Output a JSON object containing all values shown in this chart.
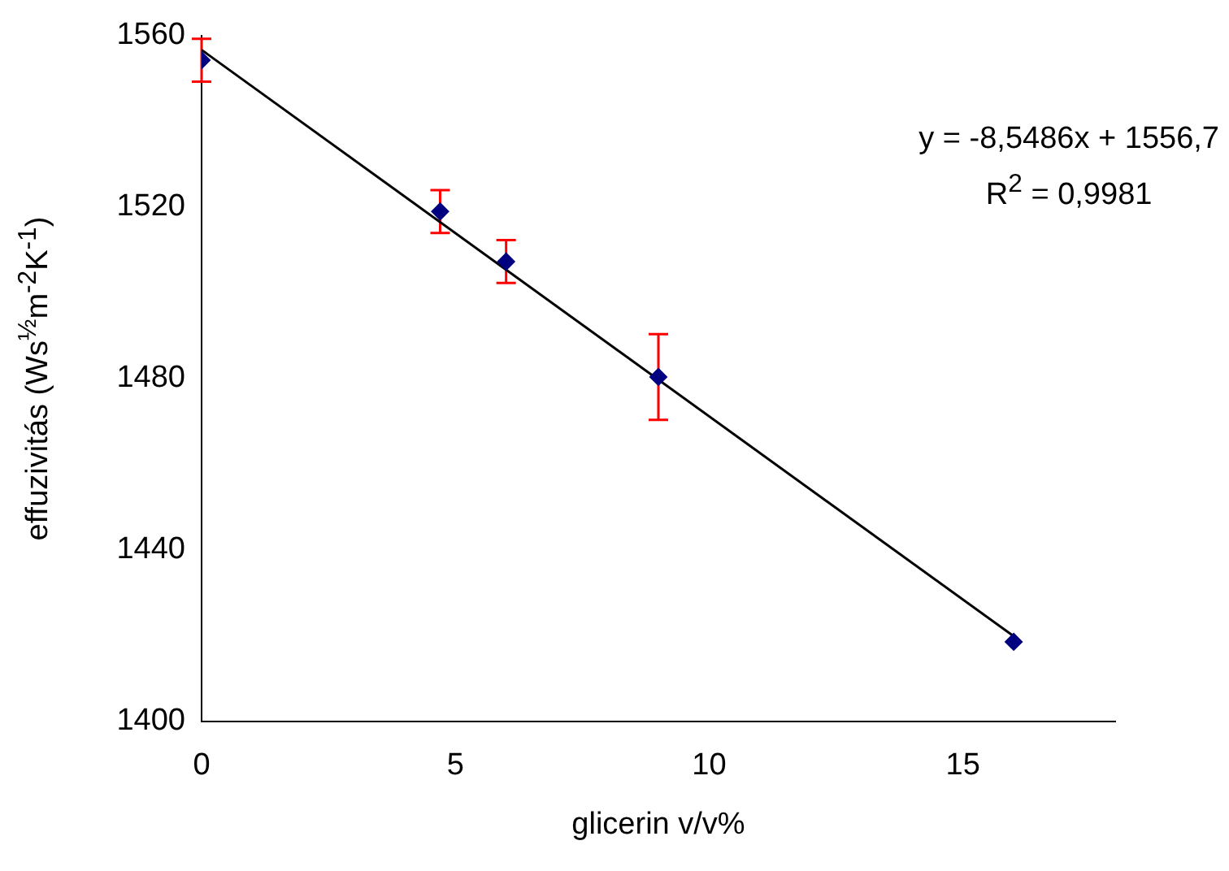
{
  "chart_data": {
    "type": "scatter",
    "xlabel": "glicerin v/v%",
    "ylabel": "effuzivitás (Ws$^{½}$m$^{-2}$K$^{-1}$)",
    "xlim": [
      0,
      18
    ],
    "xticks": [
      0,
      5,
      10,
      15
    ],
    "ylim": [
      1400,
      1560
    ],
    "yticks": [
      1400,
      1440,
      1480,
      1520,
      1560
    ],
    "grid": false,
    "legend": false,
    "marker": "diamond",
    "series": [
      {
        "color": "#000080",
        "x": [
          0,
          4.7,
          6,
          9,
          16
        ],
        "values": [
          1554.3,
          1519,
          1507.3,
          1480.4,
          1418.6
        ],
        "errors": [
          5,
          5,
          5,
          10,
          null
        ]
      },
      {
        "type": "line",
        "color": "#000000",
        "marker": "none",
        "x": [
          0,
          16
        ],
        "values": [
          1556.7,
          1419.9
        ]
      }
    ],
    "annotations": [
      "y = -8,5486x + 1556,7",
      "R$^{2}$ = 0,9981"
    ]
  }
}
